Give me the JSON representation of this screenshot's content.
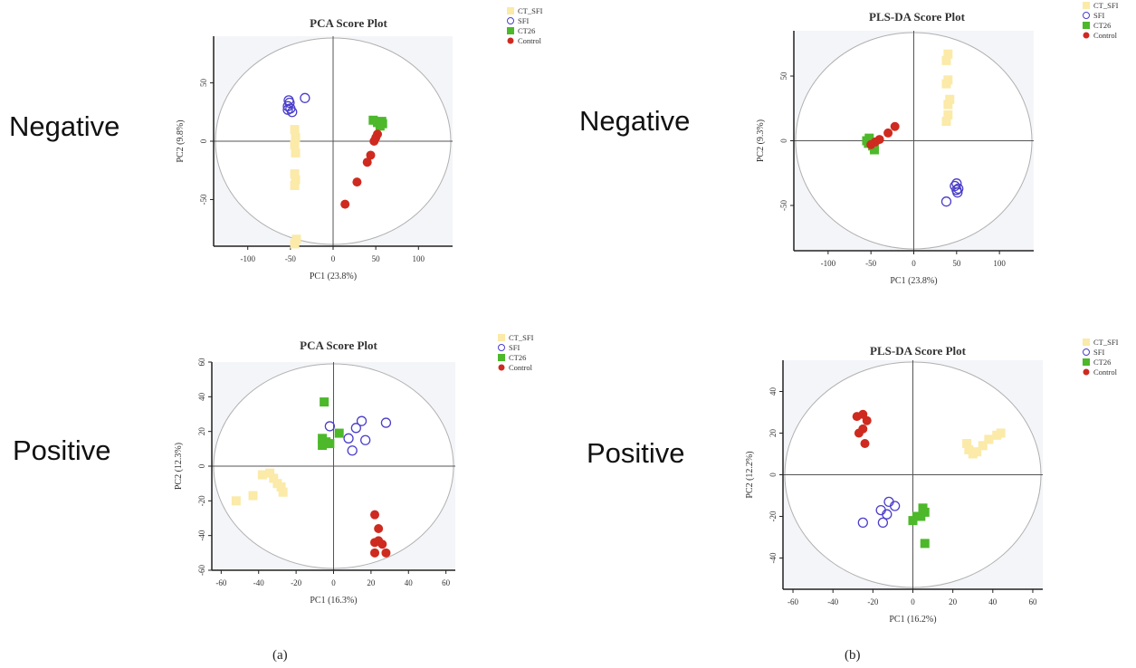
{
  "panel_labels": [
    "(a)",
    "(b)"
  ],
  "row_labels": {
    "negative": "Negative",
    "positive": "Positive"
  },
  "legend_labels": [
    "CT_SFI",
    "SFI",
    "CT26",
    "Control"
  ],
  "colors": {
    "CT_SFI": "#fbeaa8",
    "SFI": "#4a3ec9",
    "CT26": "#4cb82a",
    "Control": "#cf2a1f",
    "plot_bg": "#f4f5f8"
  },
  "chart_data": [
    {
      "type": "scatter",
      "title": "PCA Score Plot",
      "xlabel": "PC1 (23.8%)",
      "ylabel": "PC2 (9.8%)",
      "xlim": [
        -140,
        140
      ],
      "ylim": [
        -90,
        90
      ],
      "xticks": [
        -100,
        -50,
        0,
        50,
        100
      ],
      "yticks": [
        -50,
        0,
        50
      ],
      "grid": false,
      "legend": "top-right outside",
      "series": [
        {
          "name": "CT_SFI",
          "marker": "square",
          "points": [
            [
              -45,
              10
            ],
            [
              -44,
              3
            ],
            [
              -45,
              -3
            ],
            [
              -44,
              -10
            ],
            [
              -45,
              -28
            ],
            [
              -44,
              -33
            ],
            [
              -45,
              -38
            ],
            [
              -43,
              -84
            ],
            [
              -45,
              -88
            ]
          ]
        },
        {
          "name": "SFI",
          "marker": "open-circle",
          "points": [
            [
              -52,
              35
            ],
            [
              -53,
              30
            ],
            [
              -51,
              33
            ],
            [
              -50,
              28
            ],
            [
              -53,
              27
            ],
            [
              -48,
              25
            ],
            [
              -33,
              37
            ]
          ]
        },
        {
          "name": "CT26",
          "marker": "square",
          "points": [
            [
              47,
              18
            ],
            [
              52,
              16
            ],
            [
              58,
              15
            ],
            [
              55,
              13
            ],
            [
              57,
              17
            ]
          ]
        },
        {
          "name": "Control",
          "marker": "circle",
          "points": [
            [
              52,
              6
            ],
            [
              50,
              3
            ],
            [
              48,
              0
            ],
            [
              44,
              -12
            ],
            [
              40,
              -18
            ],
            [
              28,
              -35
            ],
            [
              14,
              -54
            ]
          ]
        }
      ]
    },
    {
      "type": "scatter",
      "title": "PLS-DA Score Plot",
      "xlabel": "PC1 (23.8%)",
      "ylabel": "PC2 (9.3%)",
      "xlim": [
        -140,
        140
      ],
      "ylim": [
        -85,
        85
      ],
      "xticks": [
        -100,
        -50,
        0,
        50,
        100
      ],
      "yticks": [
        -50,
        0,
        50
      ],
      "grid": false,
      "legend": "top-right outside",
      "series": [
        {
          "name": "CT_SFI",
          "marker": "square",
          "points": [
            [
              40,
              67
            ],
            [
              38,
              62
            ],
            [
              40,
              47
            ],
            [
              38,
              44
            ],
            [
              42,
              32
            ],
            [
              40,
              28
            ],
            [
              40,
              20
            ],
            [
              38,
              15
            ]
          ]
        },
        {
          "name": "SFI",
          "marker": "open-circle",
          "points": [
            [
              48,
              -35
            ],
            [
              50,
              -33
            ],
            [
              50,
              -38
            ],
            [
              52,
              -37
            ],
            [
              51,
              -40
            ],
            [
              38,
              -47
            ]
          ]
        },
        {
          "name": "CT26",
          "marker": "square",
          "points": [
            [
              -55,
              0
            ],
            [
              -52,
              2
            ],
            [
              -50,
              -1
            ],
            [
              -48,
              -4
            ],
            [
              -46,
              -7
            ],
            [
              -53,
              -2
            ]
          ]
        },
        {
          "name": "Control",
          "marker": "circle",
          "points": [
            [
              -22,
              11
            ],
            [
              -30,
              6
            ],
            [
              -40,
              1
            ],
            [
              -45,
              -1
            ],
            [
              -50,
              -3
            ]
          ]
        }
      ]
    },
    {
      "type": "scatter",
      "title": "PCA Score Plot",
      "xlabel": "PC1 (16.3%)",
      "ylabel": "PC2 (12.3%)",
      "xlim": [
        -65,
        65
      ],
      "ylim": [
        -60,
        60
      ],
      "xticks": [
        -60,
        -40,
        -20,
        0,
        20,
        40,
        60
      ],
      "yticks": [
        -60,
        -40,
        -20,
        0,
        20,
        40,
        60
      ],
      "grid": false,
      "legend": "top-right outside",
      "series": [
        {
          "name": "CT_SFI",
          "marker": "square",
          "points": [
            [
              -52,
              -20
            ],
            [
              -43,
              -17
            ],
            [
              -38,
              -5
            ],
            [
              -34,
              -4
            ],
            [
              -32,
              -7
            ],
            [
              -30,
              -10
            ],
            [
              -28,
              -12
            ],
            [
              -27,
              -15
            ]
          ]
        },
        {
          "name": "SFI",
          "marker": "open-circle",
          "points": [
            [
              28,
              25
            ],
            [
              15,
              26
            ],
            [
              12,
              22
            ],
            [
              8,
              16
            ],
            [
              10,
              9
            ],
            [
              17,
              15
            ],
            [
              -2,
              23
            ]
          ]
        },
        {
          "name": "CT26",
          "marker": "square",
          "points": [
            [
              -5,
              37
            ],
            [
              3,
              19
            ],
            [
              -6,
              16
            ],
            [
              -4,
              14
            ],
            [
              -2,
              13
            ],
            [
              -6,
              12
            ]
          ]
        },
        {
          "name": "Control",
          "marker": "circle",
          "points": [
            [
              22,
              -28
            ],
            [
              24,
              -36
            ],
            [
              24,
              -43
            ],
            [
              22,
              -44
            ],
            [
              26,
              -45
            ],
            [
              28,
              -50
            ],
            [
              22,
              -50
            ]
          ]
        }
      ]
    },
    {
      "type": "scatter",
      "title": "PLS-DA Score Plot",
      "xlabel": "PC1 (16.2%)",
      "ylabel": "PC2 (12.2%)",
      "xlim": [
        -65,
        65
      ],
      "ylim": [
        -55,
        55
      ],
      "xticks": [
        -60,
        -40,
        -20,
        0,
        20,
        40,
        60
      ],
      "yticks": [
        -40,
        -20,
        0,
        20,
        40
      ],
      "grid": false,
      "legend": "top-right outside",
      "series": [
        {
          "name": "CT_SFI",
          "marker": "square",
          "points": [
            [
              27,
              15
            ],
            [
              28,
              12
            ],
            [
              30,
              10
            ],
            [
              32,
              11
            ],
            [
              35,
              14
            ],
            [
              38,
              17
            ],
            [
              42,
              19
            ],
            [
              44,
              20
            ]
          ]
        },
        {
          "name": "SFI",
          "marker": "open-circle",
          "points": [
            [
              -25,
              -23
            ],
            [
              -16,
              -17
            ],
            [
              -15,
              -23
            ],
            [
              -13,
              -19
            ],
            [
              -12,
              -13
            ],
            [
              -9,
              -15
            ]
          ]
        },
        {
          "name": "CT26",
          "marker": "square",
          "points": [
            [
              5,
              -16
            ],
            [
              6,
              -18
            ],
            [
              4,
              -20
            ],
            [
              2,
              -20
            ],
            [
              0,
              -22
            ],
            [
              6,
              -33
            ]
          ]
        },
        {
          "name": "Control",
          "marker": "circle",
          "points": [
            [
              -28,
              28
            ],
            [
              -25,
              29
            ],
            [
              -23,
              26
            ],
            [
              -25,
              22
            ],
            [
              -27,
              20
            ],
            [
              -24,
              15
            ]
          ]
        }
      ]
    }
  ]
}
